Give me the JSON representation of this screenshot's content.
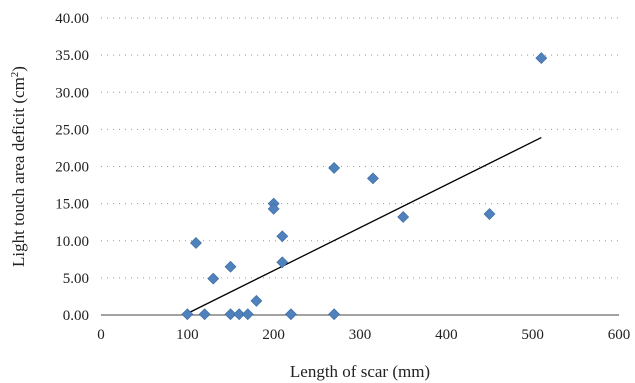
{
  "chart_data": {
    "type": "scatter",
    "xlabel": "Length of scar (mm)",
    "ylabel_main": "Light touch area deficit (cm",
    "ylabel_sup": "2",
    "ylabel_tail": ")",
    "xlim": [
      0,
      600
    ],
    "ylim": [
      0,
      40
    ],
    "x_ticks": [
      "0",
      "100",
      "200",
      "300",
      "400",
      "500",
      "600"
    ],
    "y_ticks": [
      "0.00",
      "5.00",
      "10.00",
      "15.00",
      "20.00",
      "25.00",
      "30.00",
      "35.00",
      "40.00"
    ],
    "grid": "horizontal dotted",
    "marker": "diamond",
    "marker_color": "#4f81bd",
    "trendline_color": "#000000",
    "series": [
      {
        "points": [
          [
            100,
            0.1
          ],
          [
            110,
            9.7
          ],
          [
            120,
            0.1
          ],
          [
            130,
            4.9
          ],
          [
            150,
            6.5
          ],
          [
            150,
            0.1
          ],
          [
            160,
            0.1
          ],
          [
            170,
            0.1
          ],
          [
            180,
            1.9
          ],
          [
            200,
            15.0
          ],
          [
            200,
            14.3
          ],
          [
            210,
            10.6
          ],
          [
            210,
            7.1
          ],
          [
            220,
            0.1
          ],
          [
            270,
            19.8
          ],
          [
            270,
            0.1
          ],
          [
            315,
            18.4
          ],
          [
            350,
            13.2
          ],
          [
            450,
            13.6
          ],
          [
            510,
            34.6
          ]
        ]
      }
    ],
    "trendline": {
      "x1": 100,
      "y1": 0.2,
      "x2": 510,
      "y2": 23.9
    }
  }
}
